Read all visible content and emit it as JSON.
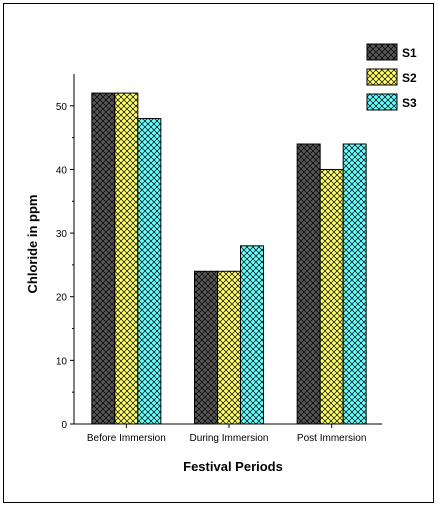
{
  "chart_data": {
    "type": "bar",
    "title": "",
    "xlabel": "Festival Periods",
    "ylabel": "Chloride in ppm",
    "categories": [
      "Before Immersion",
      "During Immersion",
      "Post Immersion"
    ],
    "series": [
      {
        "name": "S1",
        "values": [
          52,
          24,
          44
        ],
        "color": "#555555"
      },
      {
        "name": "S2",
        "values": [
          52,
          24,
          40
        ],
        "color": "#ffff66"
      },
      {
        "name": "S3",
        "values": [
          48,
          28,
          44
        ],
        "color": "#66ffff"
      }
    ],
    "ylim": [
      0,
      55
    ],
    "yticks": [
      "0",
      "10",
      "20",
      "30",
      "40",
      "50"
    ],
    "pattern": "crosshatch",
    "grid": false,
    "legend_position": "top-right"
  }
}
